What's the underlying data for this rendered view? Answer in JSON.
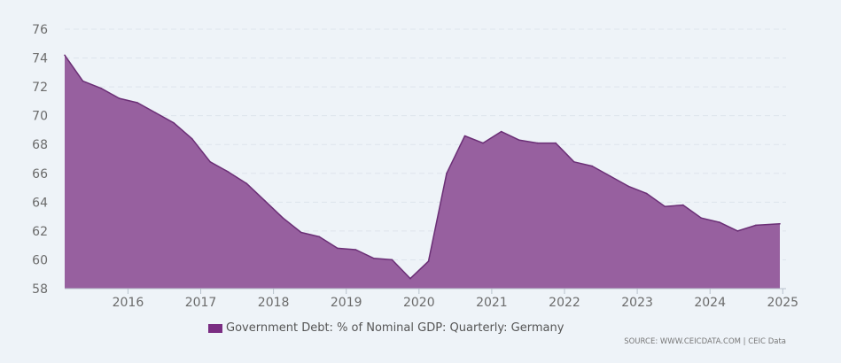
{
  "colors": {
    "fill": "#97609f",
    "line": "#6b2f76",
    "swatch": "#7a2d82",
    "grid": "#dde4ec",
    "axis": "#b8c2cc"
  },
  "legend": {
    "label": "Government Debt: % of Nominal GDP: Quarterly: Germany"
  },
  "source": {
    "text": "SOURCE: WWW.CEICDATA.COM | CEIC Data"
  },
  "chart_data": {
    "type": "area",
    "title": "",
    "xlabel": "",
    "ylabel": "",
    "ylim": [
      58,
      76
    ],
    "xlim": [
      2015.13,
      2024.96
    ],
    "yticks": [
      "58",
      "60",
      "62",
      "64",
      "66",
      "68",
      "70",
      "72",
      "74",
      "76"
    ],
    "xticks": [
      "2016",
      "2017",
      "2018",
      "2019",
      "2020",
      "2021",
      "2022",
      "2023",
      "2024",
      "2025"
    ],
    "grid": true,
    "series": [
      {
        "name": "Government Debt: % of Nominal GDP: Quarterly: Germany",
        "x": [
          2015.13,
          2015.38,
          2015.63,
          2015.88,
          2016.13,
          2016.38,
          2016.63,
          2016.88,
          2017.13,
          2017.38,
          2017.63,
          2017.88,
          2018.13,
          2018.38,
          2018.63,
          2018.88,
          2019.13,
          2019.38,
          2019.63,
          2019.88,
          2020.13,
          2020.38,
          2020.63,
          2020.88,
          2021.13,
          2021.38,
          2021.63,
          2021.88,
          2022.13,
          2022.38,
          2022.63,
          2022.88,
          2023.13,
          2023.38,
          2023.63,
          2023.88,
          2024.13,
          2024.38,
          2024.63,
          2024.96
        ],
        "values": [
          74.2,
          72.4,
          71.9,
          71.2,
          70.9,
          70.2,
          69.5,
          68.4,
          66.8,
          66.1,
          65.3,
          64.1,
          62.9,
          61.9,
          61.6,
          60.8,
          60.7,
          60.1,
          60.0,
          58.7,
          59.9,
          66.0,
          68.6,
          68.1,
          68.9,
          68.3,
          68.1,
          68.1,
          66.8,
          66.5,
          65.8,
          65.1,
          64.6,
          63.7,
          63.8,
          62.9,
          62.6,
          62.0,
          62.4,
          62.5
        ]
      }
    ]
  }
}
